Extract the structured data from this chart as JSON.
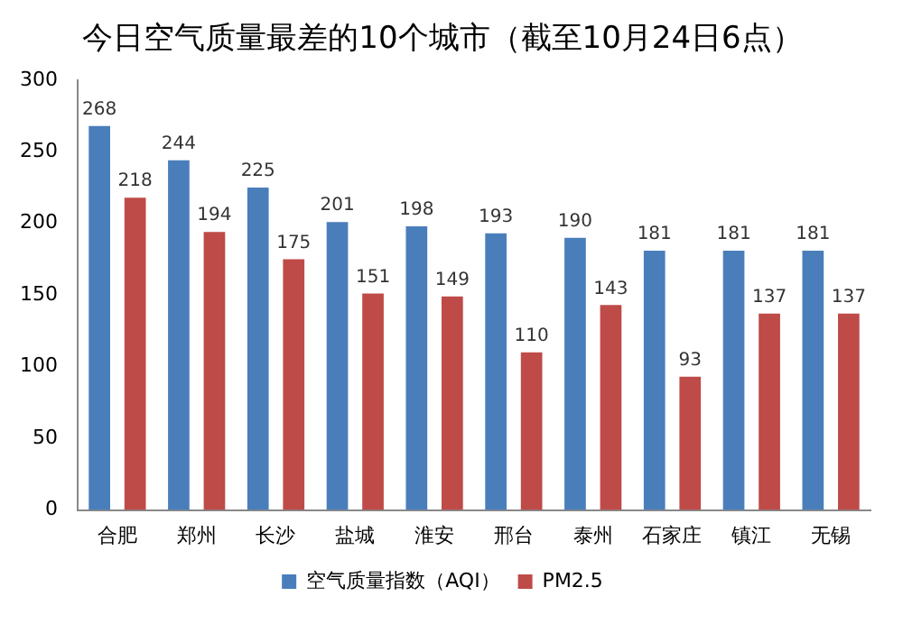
{
  "chart_data": {
    "type": "bar",
    "title": "今日空气质量最差的10个城市（截至10月24日6点）",
    "categories": [
      "合肥",
      "郑州",
      "长沙",
      "盐城",
      "淮安",
      "邢台",
      "泰州",
      "石家庄",
      "镇江",
      "无锡"
    ],
    "series": [
      {
        "name": "空气质量指数（AQI）",
        "color": "#4a7ebb",
        "values": [
          268,
          244,
          225,
          201,
          198,
          193,
          190,
          181,
          181,
          181
        ]
      },
      {
        "name": "PM2.5",
        "color": "#be4b48",
        "values": [
          218,
          194,
          175,
          151,
          149,
          110,
          143,
          93,
          137,
          137
        ]
      }
    ],
    "ylim": [
      0,
      300
    ],
    "yticks": [
      0,
      50,
      100,
      150,
      200,
      250,
      300
    ],
    "grid": false,
    "legend": "bottom",
    "data_labels": true
  }
}
